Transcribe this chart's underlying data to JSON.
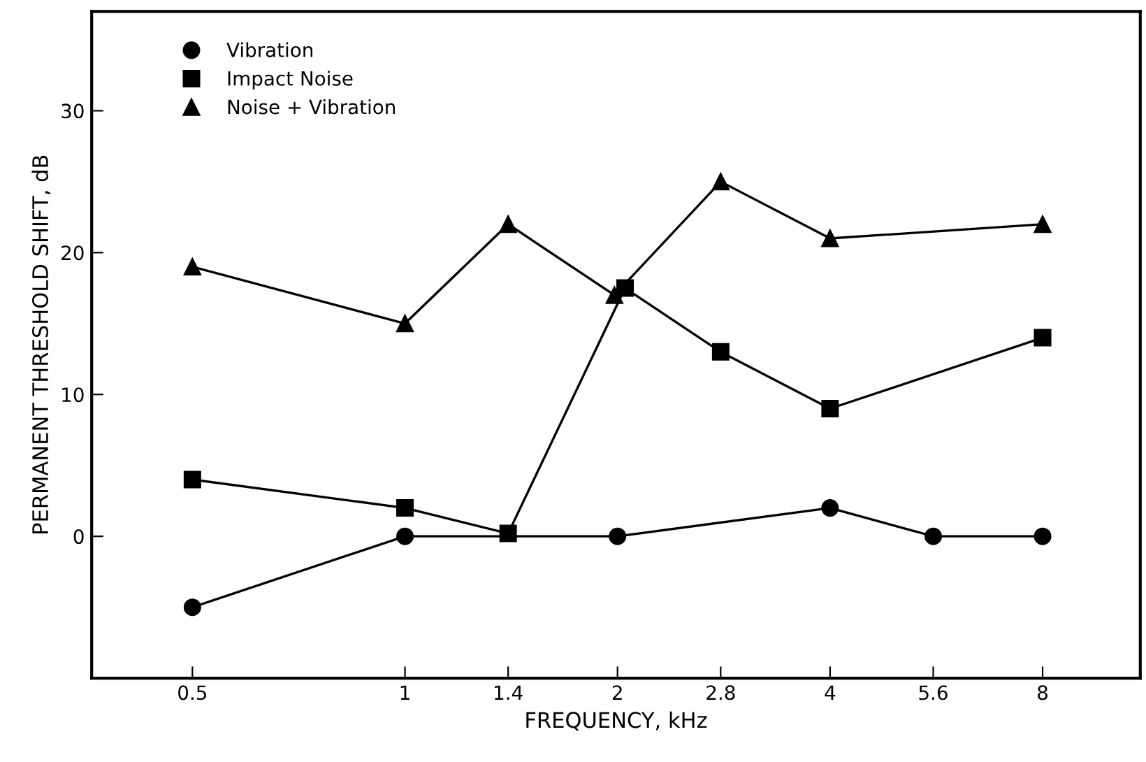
{
  "chart_data": {
    "type": "line",
    "xlabel": "FREQUENCY, kHz",
    "ylabel": "PERMANENT THRESHOLD SHIFT, dB",
    "log": "x",
    "xlim": [
      0.36,
      11
    ],
    "xticks": [
      0.5,
      1,
      1.4,
      2,
      2.8,
      4,
      5.6,
      8
    ],
    "ylim": [
      -10,
      37
    ],
    "yticks": [
      0,
      10,
      20,
      30
    ],
    "grid": false,
    "legend": "top left",
    "series": [
      {
        "name": "Vibration",
        "color": "#000000",
        "marker": "circle",
        "x": [
          0.5,
          1,
          2,
          4,
          5.6,
          8
        ],
        "values": [
          -5,
          0,
          0,
          2,
          0,
          0
        ]
      },
      {
        "name": "Impact Noise",
        "color": "#000000",
        "marker": "square",
        "x": [
          0.5,
          1,
          1.4,
          2.05,
          2.8,
          4,
          8
        ],
        "values": [
          4,
          2,
          0.2,
          17.5,
          13,
          9,
          14
        ]
      },
      {
        "name": "Noise + Vibration",
        "color": "#000000",
        "marker": "triangle",
        "x": [
          0.5,
          1,
          1.4,
          1.98,
          2.8,
          4,
          8
        ],
        "values": [
          19,
          15,
          22,
          17,
          25,
          21,
          22
        ]
      }
    ]
  }
}
